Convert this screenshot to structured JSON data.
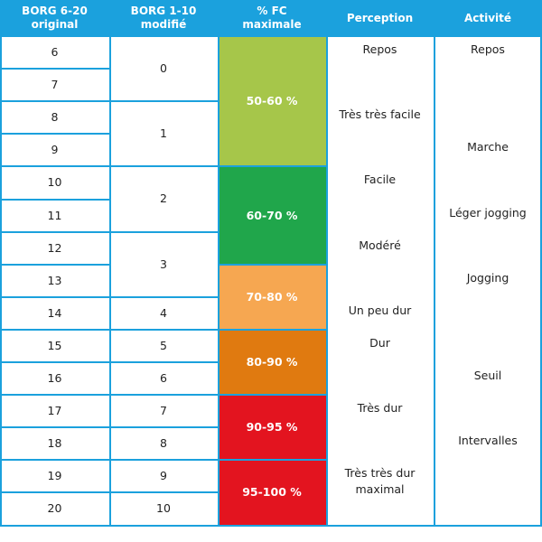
{
  "headers": [
    "BORG 6-20\noriginal",
    "BORG 1-10\nmodifié",
    "% FC\nmaximale",
    "Perception",
    "Activité"
  ],
  "borg_original": [
    "6",
    "7",
    "8",
    "9",
    "10",
    "11",
    "12",
    "13",
    "14",
    "15",
    "16",
    "17",
    "18",
    "19",
    "20"
  ],
  "borg_modified": [
    {
      "label": "0",
      "start": 0,
      "span": 2
    },
    {
      "label": "1",
      "start": 2,
      "span": 2
    },
    {
      "label": "2",
      "start": 4,
      "span": 2
    },
    {
      "label": "3",
      "start": 6,
      "span": 2
    },
    {
      "label": "4",
      "start": 8,
      "span": 1
    },
    {
      "label": "5",
      "start": 9,
      "span": 1
    },
    {
      "label": "6",
      "start": 10,
      "span": 1
    },
    {
      "label": "7",
      "start": 11,
      "span": 1
    },
    {
      "label": "8",
      "start": 12,
      "span": 1
    },
    {
      "label": "9",
      "start": 13,
      "span": 1
    },
    {
      "label": "10",
      "start": 14,
      "span": 1
    }
  ],
  "fc_zones": [
    {
      "label": "50-60 %",
      "start": 0,
      "span": 4,
      "color": "#a6c64a"
    },
    {
      "label": "60-70 %",
      "start": 4,
      "span": 3,
      "color": "#20a64b"
    },
    {
      "label": "70-80 %",
      "start": 7,
      "span": 2,
      "color": "#f6a751"
    },
    {
      "label": "80-90 %",
      "start": 9,
      "span": 2,
      "color": "#e07a10"
    },
    {
      "label": "90-95 %",
      "start": 11,
      "span": 2,
      "color": "#e3141f"
    },
    {
      "label": "95-100 %",
      "start": 13,
      "span": 2,
      "color": "#e3141f"
    }
  ],
  "perception": [
    {
      "label": "Repos",
      "row": 0
    },
    {
      "label": "Très très facile",
      "row": 2
    },
    {
      "label": "Facile",
      "row": 4
    },
    {
      "label": "Modéré",
      "row": 6
    },
    {
      "label": "Un peu dur",
      "row": 8
    },
    {
      "label": "Dur",
      "row": 9
    },
    {
      "label": "Très dur",
      "row": 11
    },
    {
      "label": "Très très dur\nmaximal",
      "row": 13
    }
  ],
  "activity": [
    {
      "label": "Repos",
      "row": 0
    },
    {
      "label": "Marche",
      "row": 3
    },
    {
      "label": "Léger jogging",
      "row": 5
    },
    {
      "label": "Jogging",
      "row": 7
    },
    {
      "label": "Seuil",
      "row": 10
    },
    {
      "label": "Intervalles",
      "row": 12
    }
  ],
  "colors": {
    "border": "#1ba1dd",
    "header_bg": "#1ba1dd"
  }
}
